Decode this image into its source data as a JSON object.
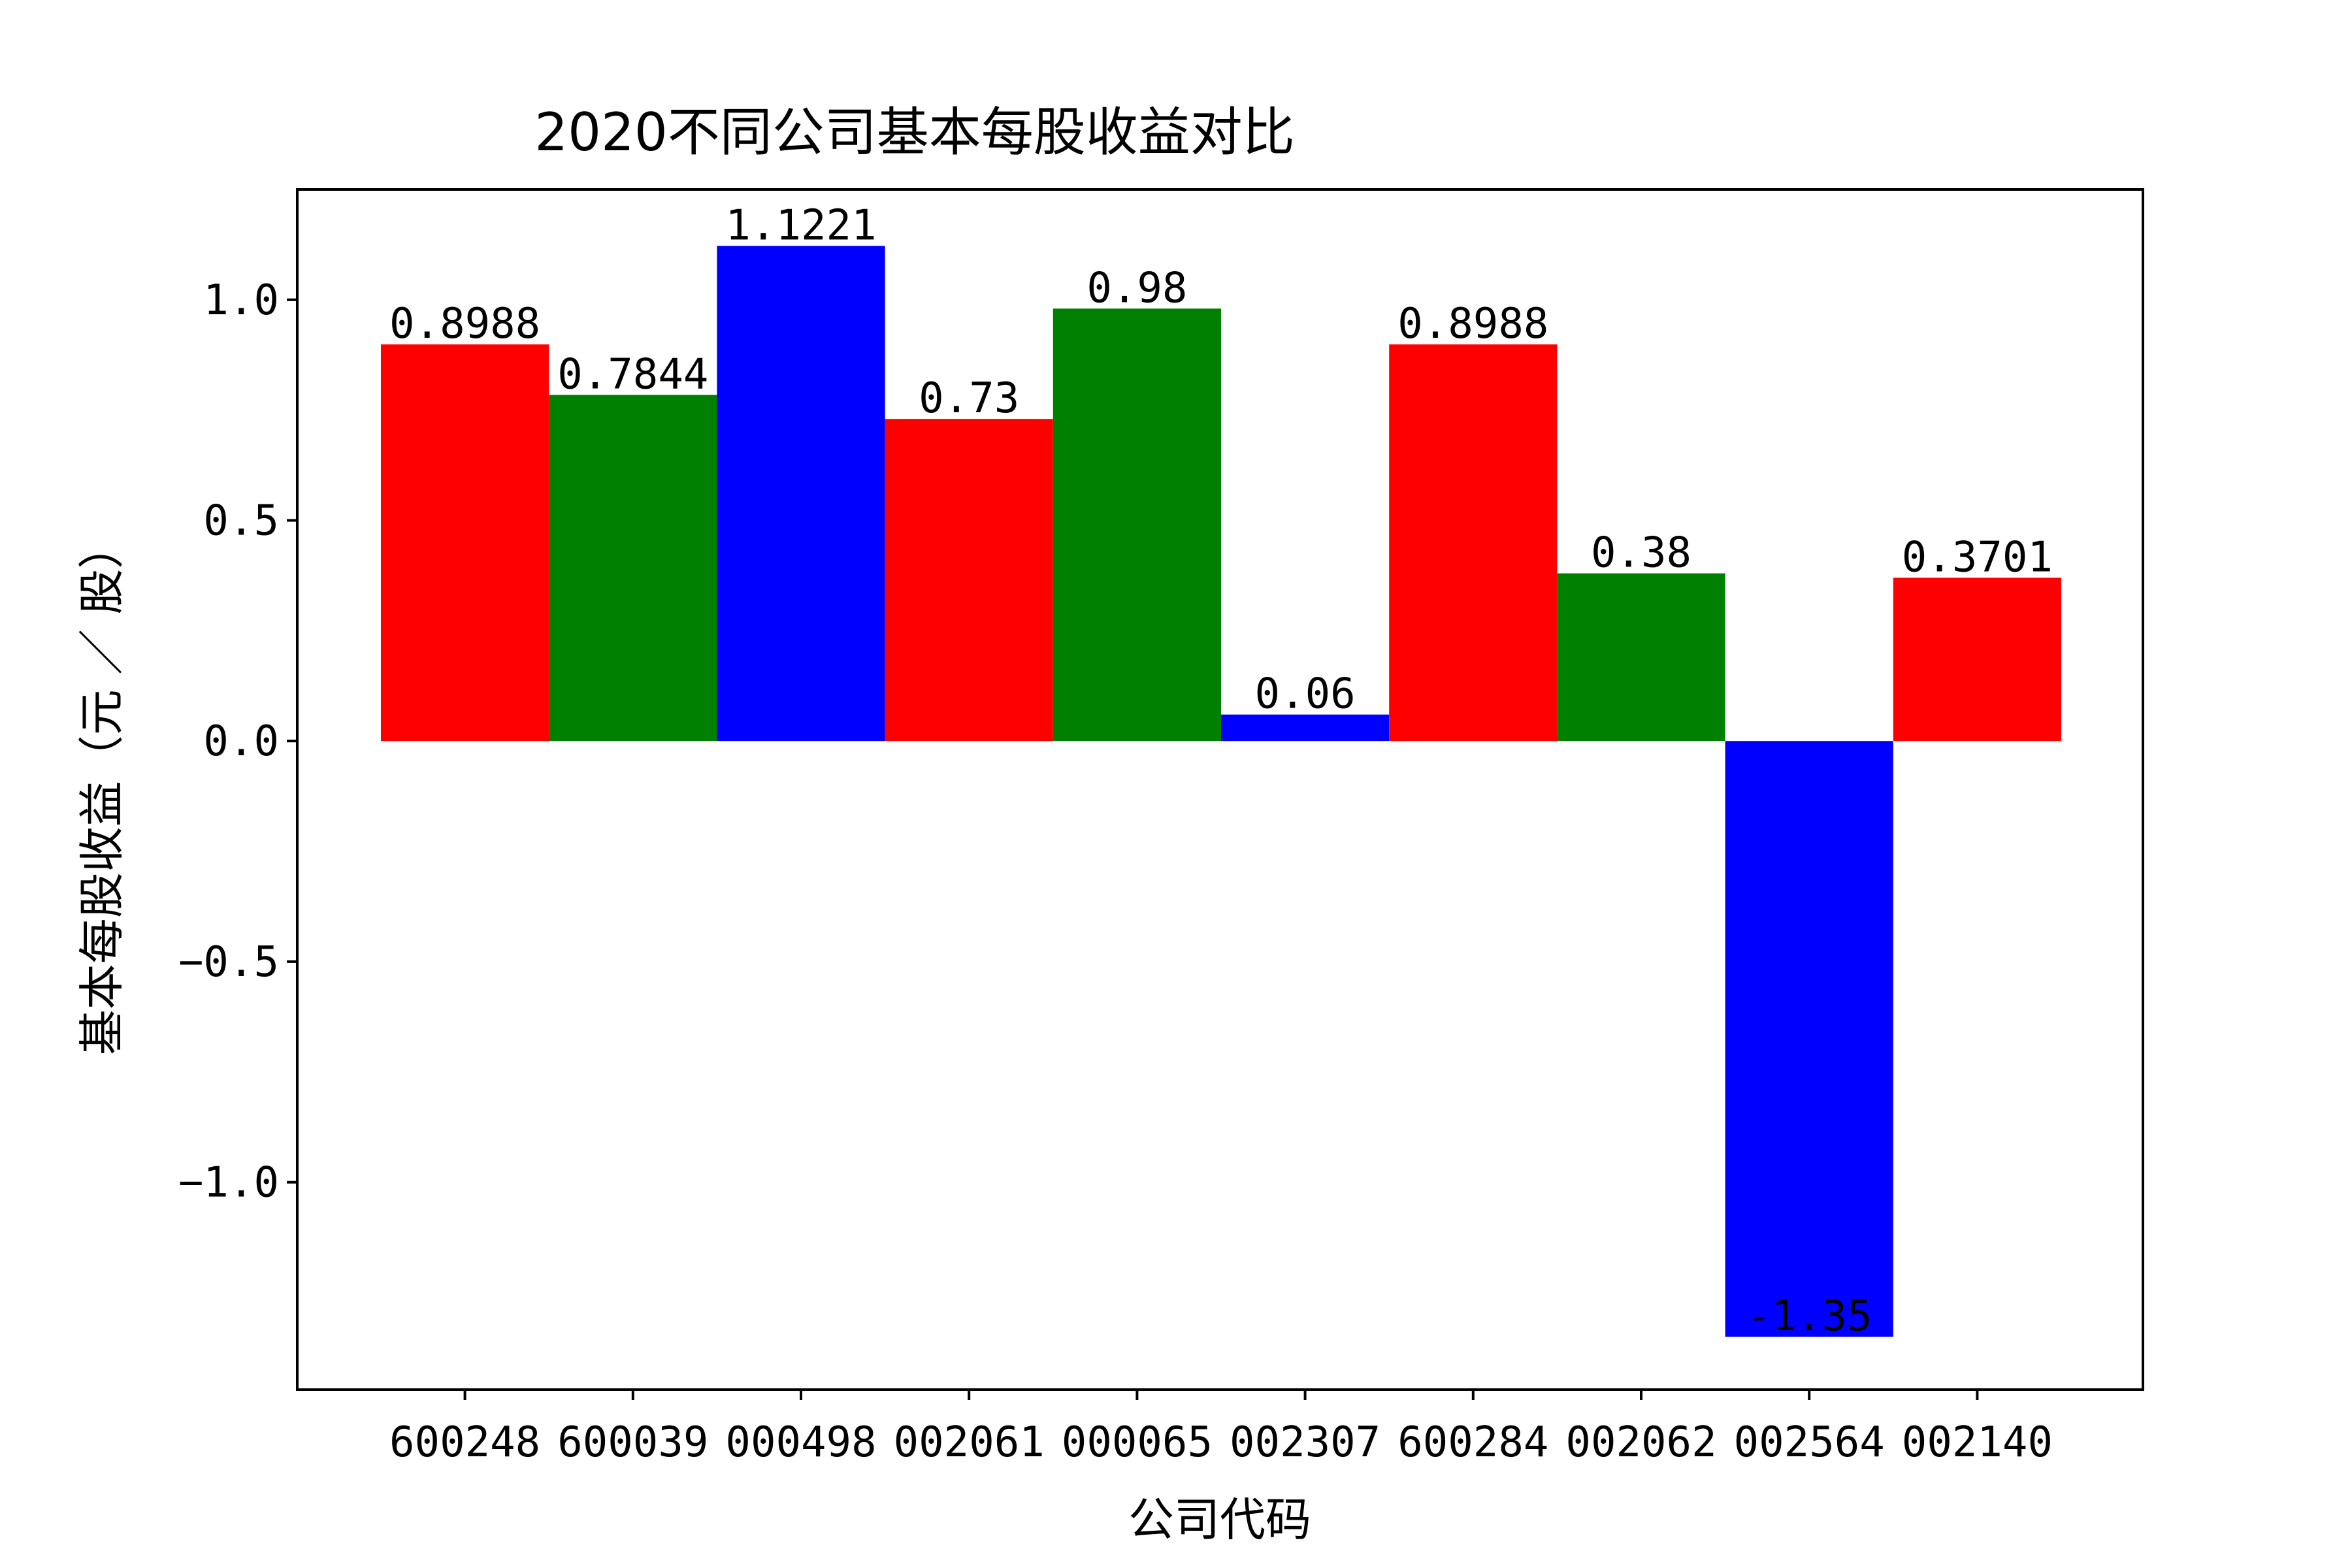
{
  "chart_data": {
    "type": "bar",
    "title": "2020不同公司基本每股收益对比",
    "xlabel": "公司代码",
    "ylabel": "基本每股收益（元 ／ 股）",
    "categories": [
      "600248",
      "600039",
      "000498",
      "002061",
      "000065",
      "002307",
      "600284",
      "002062",
      "002564",
      "002140"
    ],
    "values": [
      0.8988,
      0.7844,
      1.1221,
      0.73,
      0.98,
      0.06,
      0.8988,
      0.38,
      -1.35,
      0.3701
    ],
    "value_labels": [
      "0.8988",
      "0.7844",
      "1.1221",
      "0.73",
      "0.98",
      "0.06",
      "0.8988",
      "0.38",
      "-1.35",
      "0.3701"
    ],
    "colors": [
      "#ff0000",
      "#008000",
      "#0000ff",
      "#ff0000",
      "#008000",
      "#0000ff",
      "#ff0000",
      "#008000",
      "#0000ff",
      "#ff0000"
    ],
    "ylim": [
      -1.47,
      1.25
    ],
    "yticks": [
      -1.0,
      -0.5,
      0.0,
      0.5,
      1.0
    ],
    "ytick_labels": [
      "−1.0",
      "−0.5",
      "0.0",
      "0.5",
      "1.0"
    ],
    "grid": false,
    "legend": "none"
  }
}
